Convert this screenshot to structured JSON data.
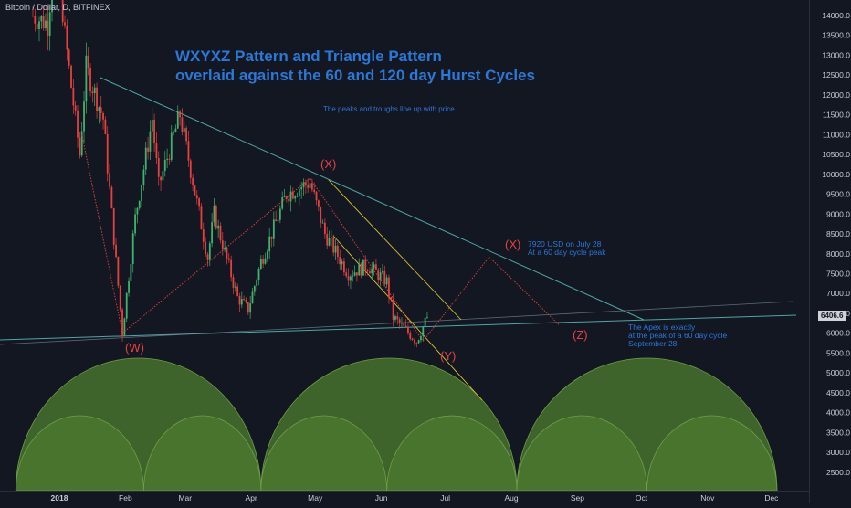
{
  "header": {
    "symbol_line": "Bitcoin / Dollar, D, BITFINEX"
  },
  "annotations": {
    "title_line1": "WXYXZ Pattern and Triangle Pattern",
    "title_line2": "overlaid against the 60 and 120 day Hurst Cycles",
    "subtitle": "The peaks and troughs line up with price",
    "note_x_line1": "7920 USD on July 28",
    "note_x_line2": "At a 60 day cycle peak",
    "note_apex_line1": "The Apex is exactly",
    "note_apex_line2": "at the peak of a 60 day cycle",
    "note_apex_line3": "September 28",
    "wave_w": "(W)",
    "wave_x1": "(X)",
    "wave_y": "(Y)",
    "wave_x2": "(X)",
    "wave_z": "(Z)"
  },
  "price_tag": "6406.6",
  "colors": {
    "background": "#131722",
    "candle_up": "#3fb36e",
    "candle_down": "#e8403f",
    "cycle_fill": "#4c7a2e",
    "text_blue": "#2a78d8",
    "wave_red": "#e8403f",
    "trend_teal": "#4fa6a6",
    "channel_yellow": "#d9c22c"
  },
  "chart_data": {
    "type": "candlestick",
    "title": "WXYXZ Pattern and Triangle Pattern overlaid against the 60 and 120 day Hurst Cycles",
    "x_tick_labels": [
      "2018",
      "Feb",
      "Mar",
      "Apr",
      "May",
      "Jun",
      "Jul",
      "Aug",
      "Sep",
      "Oct",
      "Nov",
      "Dec"
    ],
    "y_tick_labels": [
      2500,
      3000,
      3500,
      4000,
      4500,
      5000,
      5500,
      6000,
      6500,
      7000,
      7500,
      8000,
      8500,
      9000,
      9500,
      10000,
      10500,
      11000,
      11500,
      12000,
      12500,
      13000,
      13500,
      14000
    ],
    "ylim": [
      2200,
      14300
    ],
    "price_path": [
      [
        "2017-12-26",
        14000
      ],
      [
        "2018-01-02",
        13800
      ],
      [
        "2018-01-06",
        16000
      ],
      [
        "2018-01-10",
        13500
      ],
      [
        "2018-01-17",
        10500
      ],
      [
        "2018-01-20",
        12700
      ],
      [
        "2018-01-28",
        11400
      ],
      [
        "2018-02-06",
        6000
      ],
      [
        "2018-02-12",
        8900
      ],
      [
        "2018-02-20",
        11400
      ],
      [
        "2018-02-23",
        9700
      ],
      [
        "2018-03-05",
        11500
      ],
      [
        "2018-03-18",
        7900
      ],
      [
        "2018-03-21",
        9000
      ],
      [
        "2018-04-01",
        6900
      ],
      [
        "2018-04-06",
        6600
      ],
      [
        "2018-04-12",
        7800
      ],
      [
        "2018-04-24",
        9500
      ],
      [
        "2018-05-05",
        9800
      ],
      [
        "2018-05-12",
        8500
      ],
      [
        "2018-05-23",
        7500
      ],
      [
        "2018-06-01",
        7700
      ],
      [
        "2018-06-10",
        7300
      ],
      [
        "2018-06-13",
        6400
      ],
      [
        "2018-06-24",
        5800
      ],
      [
        "2018-06-29",
        6406
      ]
    ],
    "wave_points": [
      {
        "label": "(W)",
        "date": "2018-02-06",
        "price": 6000
      },
      {
        "label": "(X)",
        "date": "2018-05-05",
        "price": 9900
      },
      {
        "label": "(Y)",
        "date": "2018-06-27",
        "price": 5800
      },
      {
        "label": "(X)",
        "date": "2018-07-28",
        "price": 7920
      },
      {
        "label": "(Z)",
        "date": "2018-08-30",
        "price": 6200
      }
    ],
    "hurst_cycles": [
      {
        "period_days": 120,
        "troughs": [
          "2017-12-18",
          "2018-04-12",
          "2018-08-10",
          "2018-12-10"
        ]
      },
      {
        "period_days": 60,
        "troughs": [
          "2017-12-18",
          "2018-02-16",
          "2018-04-12",
          "2018-06-10",
          "2018-08-10",
          "2018-10-10",
          "2018-12-10"
        ]
      }
    ]
  }
}
